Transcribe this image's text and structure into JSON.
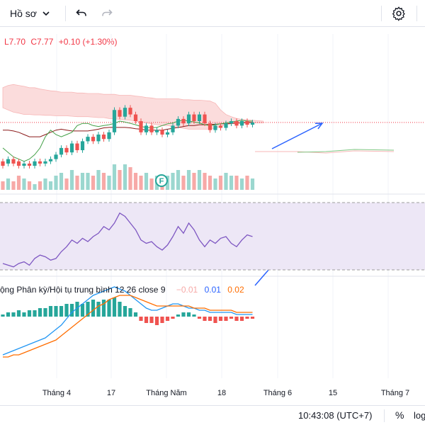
{
  "toolbar": {
    "profile_label": "Hồ sơ",
    "profile_icon": "chevron-down-icon",
    "undo_icon": "undo-icon",
    "redo_icon": "redo-icon",
    "settings_icon": "gear-icon"
  },
  "legend": {
    "low": "L7.70",
    "close": "C7.77",
    "change": "+0.10 (+1.30%)",
    "color": "#f23645"
  },
  "macd_legend": {
    "title": "ộng Phân kỳ/Hội tụ trung bình 12 26 close 9",
    "histogram": "−0.01",
    "macd": "0.01",
    "signal": "0.02"
  },
  "status": {
    "time": "10:43:08 (UTC+7)",
    "percent": "%",
    "log": "log"
  },
  "colors": {
    "up": "#26a69a",
    "down": "#ef5350",
    "macd_line": "#2196f3",
    "signal_line": "#ff6d00",
    "rsi_line": "#7e57c2",
    "rsi_band": "#ede7f6",
    "cloud": "#fbdcdc",
    "arrow": "#2962ff"
  },
  "chart_data": {
    "type": "candlestick",
    "x_tick_labels": [
      "Tháng 4",
      "17",
      "Tháng Năm",
      "18",
      "Tháng 6",
      "15",
      "Tháng 7"
    ],
    "price": {
      "last_low": 7.7,
      "last_close": 7.77,
      "change": 0.1,
      "change_pct": 1.3,
      "candles": [
        {
          "o": 6.9,
          "c": 6.8
        },
        {
          "o": 6.85,
          "c": 6.95
        },
        {
          "o": 6.95,
          "c": 6.85
        },
        {
          "o": 6.9,
          "c": 6.8
        },
        {
          "o": 6.8,
          "c": 6.85
        },
        {
          "o": 6.85,
          "c": 6.8
        },
        {
          "o": 6.8,
          "c": 6.9
        },
        {
          "o": 6.9,
          "c": 6.85
        },
        {
          "o": 6.85,
          "c": 6.9
        },
        {
          "o": 6.9,
          "c": 6.95
        },
        {
          "o": 6.95,
          "c": 7.05
        },
        {
          "o": 7.05,
          "c": 7.2
        },
        {
          "o": 7.2,
          "c": 7.1
        },
        {
          "o": 7.1,
          "c": 7.3
        },
        {
          "o": 7.3,
          "c": 7.15
        },
        {
          "o": 7.15,
          "c": 7.35
        },
        {
          "o": 7.35,
          "c": 7.45
        },
        {
          "o": 7.45,
          "c": 7.35
        },
        {
          "o": 7.35,
          "c": 7.5
        },
        {
          "o": 7.5,
          "c": 7.4
        },
        {
          "o": 7.4,
          "c": 7.55
        },
        {
          "o": 7.55,
          "c": 8.05
        },
        {
          "o": 8.05,
          "c": 7.9
        },
        {
          "o": 7.9,
          "c": 8.1
        },
        {
          "o": 8.1,
          "c": 7.95
        },
        {
          "o": 7.95,
          "c": 7.8
        },
        {
          "o": 7.8,
          "c": 7.55
        },
        {
          "o": 7.55,
          "c": 7.7
        },
        {
          "o": 7.7,
          "c": 7.55
        },
        {
          "o": 7.55,
          "c": 7.6
        },
        {
          "o": 7.6,
          "c": 7.5
        },
        {
          "o": 7.5,
          "c": 7.55
        },
        {
          "o": 7.55,
          "c": 7.7
        },
        {
          "o": 7.7,
          "c": 7.85
        },
        {
          "o": 7.85,
          "c": 7.75
        },
        {
          "o": 7.75,
          "c": 7.95
        },
        {
          "o": 7.95,
          "c": 7.8
        },
        {
          "o": 7.8,
          "c": 7.95
        },
        {
          "o": 7.95,
          "c": 7.75
        },
        {
          "o": 7.75,
          "c": 7.6
        },
        {
          "o": 7.6,
          "c": 7.7
        },
        {
          "o": 7.7,
          "c": 7.65
        },
        {
          "o": 7.65,
          "c": 7.75
        },
        {
          "o": 7.75,
          "c": 7.8
        },
        {
          "o": 7.8,
          "c": 7.7
        },
        {
          "o": 7.7,
          "c": 7.8
        },
        {
          "o": 7.8,
          "c": 7.72
        },
        {
          "o": 7.72,
          "c": 7.77
        }
      ]
    },
    "volume": [
      3,
      4,
      3,
      5,
      4,
      3,
      2,
      3,
      4,
      3,
      5,
      6,
      4,
      7,
      5,
      6,
      6,
      5,
      7,
      6,
      5,
      9,
      7,
      9,
      8,
      6,
      5,
      6,
      4,
      5,
      4,
      5,
      6,
      7,
      5,
      7,
      6,
      7,
      6,
      5,
      4,
      5,
      6,
      5,
      5,
      4,
      5,
      4
    ],
    "rsi": [
      48,
      47,
      46,
      48,
      49,
      47,
      51,
      53,
      52,
      50,
      51,
      55,
      58,
      62,
      60,
      63,
      61,
      64,
      66,
      70,
      68,
      72,
      78,
      76,
      72,
      68,
      62,
      60,
      61,
      58,
      56,
      59,
      64,
      70,
      66,
      72,
      68,
      62,
      58,
      62,
      60,
      63,
      64,
      60,
      58,
      62,
      65,
      64
    ],
    "macd": {
      "histogram": [
        0.01,
        0.02,
        0.02,
        0.03,
        0.02,
        0.03,
        0.03,
        0.04,
        0.04,
        0.05,
        0.05,
        0.05,
        0.06,
        0.06,
        0.07,
        0.06,
        0.07,
        0.08,
        0.07,
        0.08,
        0.08,
        0.09,
        0.07,
        0.05,
        0.04,
        0.02,
        -0.02,
        -0.03,
        -0.03,
        -0.04,
        -0.03,
        -0.02,
        -0.01,
        0.01,
        0.02,
        0.02,
        0.01,
        -0.01,
        -0.02,
        -0.02,
        -0.03,
        -0.02,
        -0.02,
        -0.01,
        -0.02,
        -0.02,
        -0.01,
        -0.01
      ],
      "macd": [
        -0.18,
        -0.17,
        -0.16,
        -0.15,
        -0.14,
        -0.13,
        -0.12,
        -0.11,
        -0.1,
        -0.08,
        -0.06,
        -0.04,
        -0.01,
        0.02,
        0.04,
        0.06,
        0.08,
        0.1,
        0.11,
        0.12,
        0.13,
        0.14,
        0.13,
        0.12,
        0.1,
        0.08,
        0.06,
        0.04,
        0.03,
        0.03,
        0.04,
        0.05,
        0.06,
        0.06,
        0.05,
        0.04,
        0.04,
        0.03,
        0.03,
        0.02,
        0.02,
        0.02,
        0.02,
        0.02,
        0.01,
        0.01,
        0.01,
        0.01
      ],
      "signal": [
        -0.19,
        -0.19,
        -0.18,
        -0.18,
        -0.17,
        -0.16,
        -0.15,
        -0.14,
        -0.13,
        -0.12,
        -0.11,
        -0.09,
        -0.07,
        -0.05,
        -0.03,
        -0.01,
        0.01,
        0.03,
        0.05,
        0.06,
        0.08,
        0.09,
        0.1,
        0.1,
        0.1,
        0.09,
        0.08,
        0.07,
        0.06,
        0.05,
        0.05,
        0.05,
        0.05,
        0.05,
        0.05,
        0.05,
        0.04,
        0.04,
        0.04,
        0.03,
        0.03,
        0.03,
        0.03,
        0.03,
        0.02,
        0.02,
        0.02,
        0.02
      ]
    }
  }
}
